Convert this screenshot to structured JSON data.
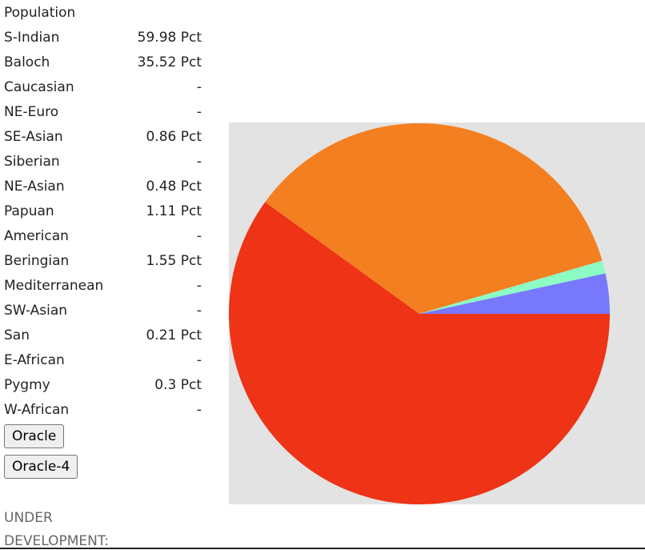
{
  "table": {
    "header": "Population",
    "rows": [
      [
        "S-Indian",
        "59.98 Pct"
      ],
      [
        "Baloch",
        "35.52 Pct"
      ],
      [
        "Caucasian",
        "-"
      ],
      [
        "NE-Euro",
        "-"
      ],
      [
        "SE-Asian",
        "0.86 Pct"
      ],
      [
        "Siberian",
        "-"
      ],
      [
        "NE-Asian",
        "0.48 Pct"
      ],
      [
        "Papuan",
        "1.11 Pct"
      ],
      [
        "American",
        "-"
      ],
      [
        "Beringian",
        "1.55 Pct"
      ],
      [
        "Mediterranean",
        "-"
      ],
      [
        "SW-Asian",
        "-"
      ],
      [
        "San",
        "0.21 Pct"
      ],
      [
        "E-African",
        "-"
      ],
      [
        "Pygmy",
        "0.3 Pct"
      ],
      [
        "W-African",
        "-"
      ]
    ]
  },
  "buttons": [
    "Oracle",
    "Oracle-4"
  ],
  "footer": [
    "UNDER",
    "DEVELOPMENT:"
  ],
  "chart_data": {
    "type": "pie",
    "values": [
      59.98,
      35.52,
      1.1,
      3.4
    ],
    "colors": [
      "#ee3316",
      "#f47f21",
      "#8cfcc4",
      "#7878fc"
    ]
  }
}
